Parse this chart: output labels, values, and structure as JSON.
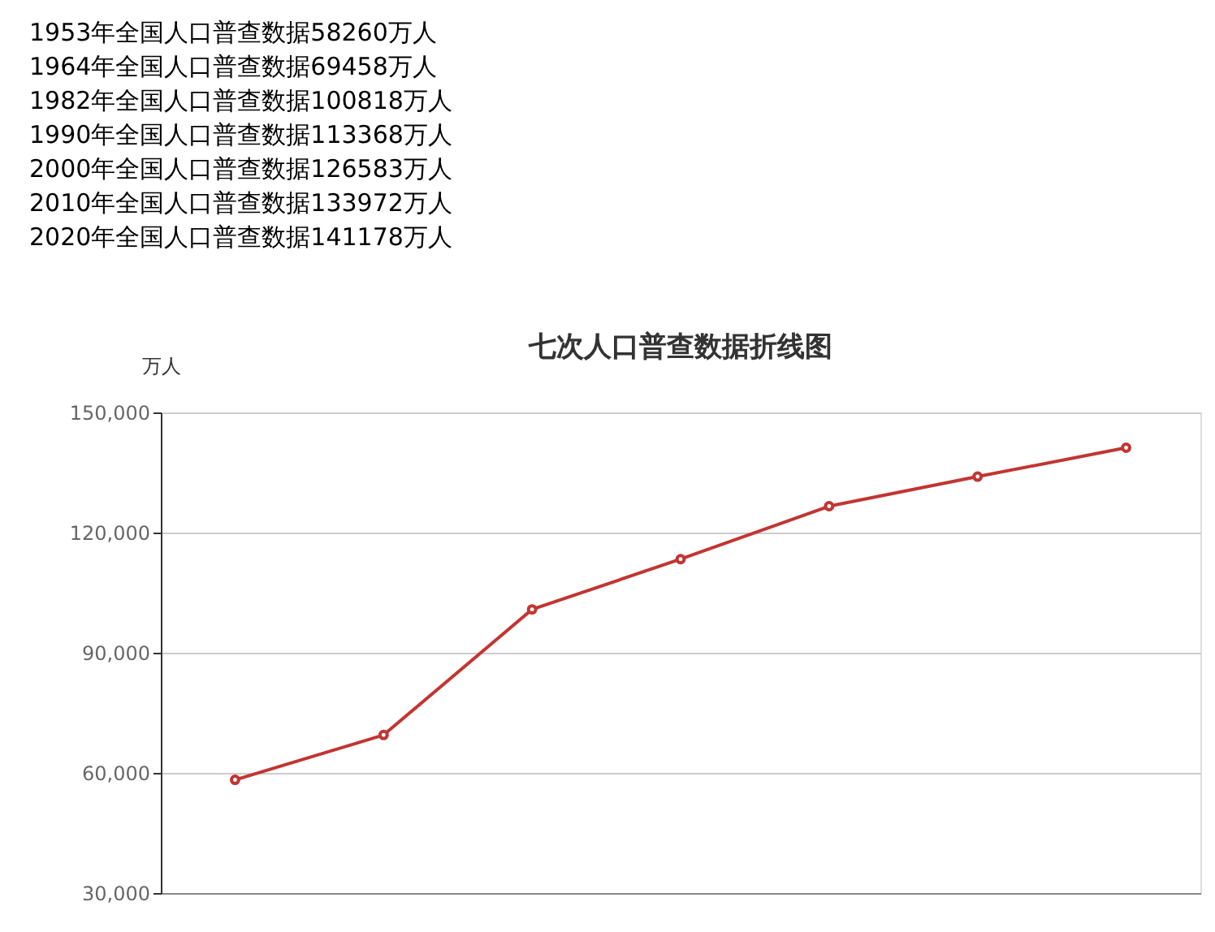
{
  "chart_data": {
    "type": "line",
    "title": "七次人口普查数据折线图",
    "ylabel": "万人",
    "annotations": [
      "1953年全国人口普查数据58260万人",
      "1964年全国人口普查数据69458万人",
      "1982年全国人口普查数据100818万人",
      "1990年全国人口普查数据113368万人",
      "2000年全国人口普查数据126583万人",
      "2010年全国人口普查数据133972万人",
      "2020年全国人口普查数据141178万人"
    ],
    "categories": [
      null,
      null,
      null,
      null,
      null,
      null,
      null
    ],
    "series": [
      {
        "color": "#c23531",
        "values": [
          58260,
          69458,
          100818,
          113368,
          126583,
          133972,
          141178
        ]
      }
    ],
    "ylim": [
      30000,
      150000
    ],
    "yticks": [
      {
        "value": 30000,
        "label": "30,000"
      },
      {
        "value": 60000,
        "label": "60,000"
      },
      {
        "value": 90000,
        "label": "90,000"
      },
      {
        "value": 120000,
        "label": "120,000"
      },
      {
        "value": 150000,
        "label": "150,000"
      }
    ],
    "grid": "y",
    "marker": "circle",
    "line_style": "solid",
    "tick_labels": "y"
  }
}
